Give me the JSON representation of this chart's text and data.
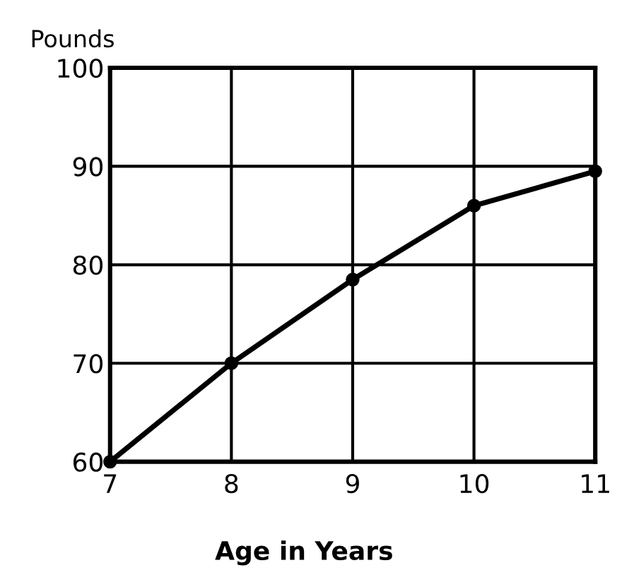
{
  "chart_data": {
    "type": "line",
    "ylabel": "Pounds",
    "xlabel": "Age in Years",
    "x": [
      7,
      8,
      9,
      10,
      11
    ],
    "values": [
      60,
      70,
      78.5,
      86,
      89.5
    ],
    "color": "#000000",
    "xlim": [
      7,
      11
    ],
    "ylim": [
      60,
      100
    ],
    "xticks": [
      7,
      8,
      9,
      10,
      11
    ],
    "yticks": [
      60,
      70,
      80,
      90,
      100
    ],
    "grid": true,
    "marker": "circle",
    "line_style": "solid"
  }
}
